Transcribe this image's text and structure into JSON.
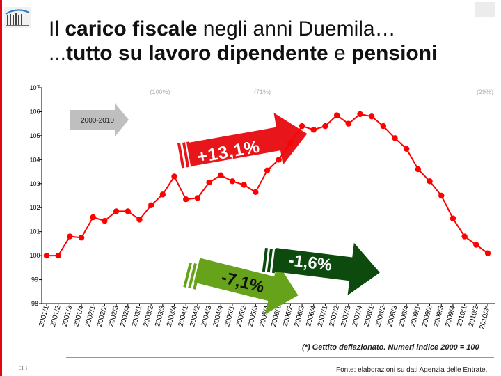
{
  "page": {
    "title_line1": [
      "Il ",
      "carico fiscale",
      " negli anni Duemila…"
    ],
    "title_line2": [
      "...",
      "tutto su lavoro dipendente",
      " e ",
      "pensioni"
    ],
    "footnote": "(*) Gettito deflazionato. Numeri indice 2000 = 100",
    "page_number": "33",
    "source": "Fonte: elaborazioni su dati Agenzia delle Entrate."
  },
  "chart_data": {
    "type": "line",
    "title": "",
    "xlabel": "",
    "ylabel": "",
    "ylim": [
      98,
      107
    ],
    "yticks": [
      98,
      99,
      100,
      101,
      102,
      103,
      104,
      105,
      106,
      107
    ],
    "grid": false,
    "line_color": "#ff0000",
    "categories": [
      "2001/1",
      "2001/2",
      "2001/3",
      "2001/4",
      "2002/1",
      "2002/2",
      "2002/3",
      "2002/4",
      "2003/1",
      "2003/2",
      "2003/3",
      "2003/4",
      "2004/1",
      "2004/2",
      "2004/3",
      "2004/4",
      "2005/1",
      "2005/2",
      "2005/3",
      "2005/4",
      "2006/1",
      "2006/2",
      "2006/3",
      "2006/4",
      "2007/1",
      "2007/2",
      "2007/3",
      "2007/4",
      "2008/1",
      "2008/2",
      "2008/3",
      "2008/4",
      "2009/1",
      "2009/2",
      "2009/3",
      "2009/4",
      "2010/1",
      "2010/2",
      "2010/3*"
    ],
    "values": [
      100.0,
      100.0,
      100.8,
      100.75,
      101.6,
      101.45,
      101.85,
      101.85,
      101.5,
      102.1,
      102.55,
      103.3,
      102.35,
      102.4,
      103.05,
      103.35,
      103.1,
      102.95,
      102.65,
      103.55,
      104.0,
      104.7,
      105.4,
      105.25,
      105.4,
      105.85,
      105.5,
      105.9,
      105.8,
      105.4,
      104.9,
      104.45,
      103.6,
      103.1,
      102.5,
      101.55,
      100.8,
      100.45,
      100.1
    ],
    "shares": [
      "(100%)",
      "(71%)",
      "(29%)"
    ],
    "annotations": {
      "period_label": "2000-2010",
      "up_label": "+13,1%",
      "down_label": "-7,1%",
      "side_label": "-1,6%"
    },
    "colors": {
      "up_arrow": "#e8151b",
      "down_arrow": "#66a31a",
      "side_arrow": "#0d4a0d",
      "period_arrow": "#bfbfbf"
    }
  }
}
